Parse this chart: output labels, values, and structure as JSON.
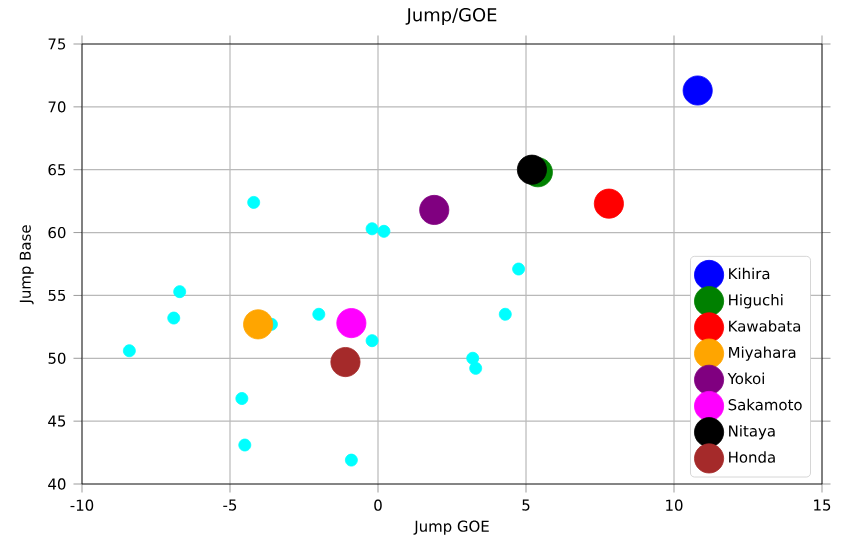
{
  "chart_data": {
    "type": "scatter",
    "title": "Jump/GOE",
    "xlabel": "Jump GOE",
    "ylabel": "Jump Base",
    "xlim": [
      -10,
      15
    ],
    "ylim": [
      40,
      75
    ],
    "xticks": [
      -10,
      -5,
      0,
      5,
      10,
      15
    ],
    "yticks": [
      40,
      45,
      50,
      55,
      60,
      65,
      70,
      75
    ],
    "grid": true,
    "legend": "bottom right",
    "series": [
      {
        "color": "#00ffff",
        "x": [
          -4.2,
          -0.2,
          0.2,
          -6.7,
          -6.9,
          -2.0,
          -3.6,
          -8.4,
          -0.2,
          3.2,
          3.3,
          -4.6,
          -4.5,
          -0.9,
          4.75,
          4.3
        ],
        "values": [
          62.4,
          60.3,
          60.1,
          55.3,
          53.2,
          53.5,
          52.7,
          50.6,
          51.4,
          50.0,
          49.2,
          46.8,
          43.1,
          41.9,
          57.1,
          53.5
        ]
      },
      {
        "name": "Kihira",
        "color": "#0000ff",
        "x": [
          10.8
        ],
        "values": [
          71.3
        ]
      },
      {
        "name": "Higuchi",
        "color": "#008000",
        "x": [
          5.4
        ],
        "values": [
          64.8
        ]
      },
      {
        "name": "Kawabata",
        "color": "#ff0000",
        "x": [
          7.8
        ],
        "values": [
          62.3
        ]
      },
      {
        "name": "Miyahara",
        "color": "#ffa500",
        "x": [
          -4.05
        ],
        "values": [
          52.7
        ]
      },
      {
        "name": "Yokoi",
        "color": "#800080",
        "x": [
          1.9
        ],
        "values": [
          61.8
        ]
      },
      {
        "name": "Sakamoto",
        "color": "#ff00ff",
        "x": [
          -0.9
        ],
        "values": [
          52.8
        ]
      },
      {
        "name": "Nitaya",
        "color": "#000000",
        "x": [
          5.2
        ],
        "values": [
          65.0
        ]
      },
      {
        "name": "Honda",
        "color": "#a52a2a",
        "x": [
          -1.1
        ],
        "values": [
          49.7
        ]
      }
    ]
  }
}
